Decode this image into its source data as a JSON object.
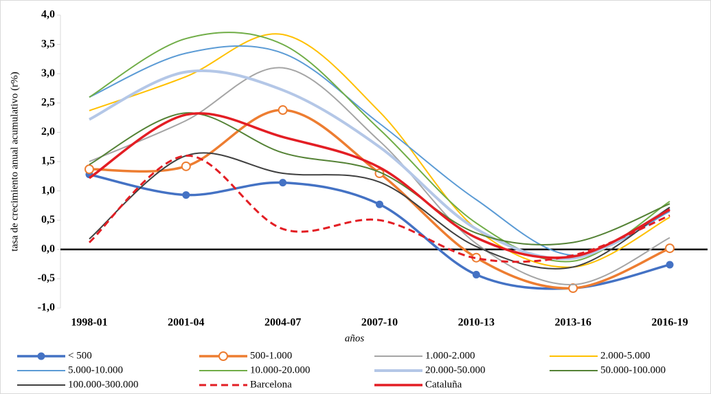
{
  "chart_data": {
    "type": "line",
    "y_label": "tasa de crecimiento anual acumulativo  (r%)",
    "x_label": "años",
    "categories": [
      "1998-01",
      "2001-04",
      "2004-07",
      "2007-10",
      "2010-13",
      "2013-16",
      "2016-19"
    ],
    "ylim": [
      -1,
      4
    ],
    "yticks": [
      {
        "value": -1,
        "label": "-1,0"
      },
      {
        "value": -0.5,
        "label": "-0,5"
      },
      {
        "value": 0,
        "label": "0,0"
      },
      {
        "value": 0.5,
        "label": "0,5"
      },
      {
        "value": 1,
        "label": "1,0"
      },
      {
        "value": 1.5,
        "label": "1,5"
      },
      {
        "value": 2,
        "label": "2,0"
      },
      {
        "value": 2.5,
        "label": "2,5"
      },
      {
        "value": 3,
        "label": "3,0"
      },
      {
        "value": 3.5,
        "label": "3,5"
      },
      {
        "value": 4,
        "label": "4,0"
      }
    ],
    "smooth": true,
    "legend": "bottom",
    "series": [
      {
        "name": "< 500",
        "color": "#4472c4",
        "width": 3.5,
        "marker": "filled",
        "values": [
          1.28,
          0.93,
          1.14,
          0.77,
          -0.43,
          -0.66,
          -0.26
        ]
      },
      {
        "name": "500-1.000",
        "color": "#ed7d31",
        "width": 3.5,
        "marker": "open",
        "values": [
          1.37,
          1.42,
          2.38,
          1.3,
          -0.14,
          -0.66,
          0.02
        ]
      },
      {
        "name": "1.000-2.000",
        "color": "#a5a5a5",
        "width": 2,
        "values": [
          1.5,
          2.2,
          3.1,
          1.85,
          0.1,
          -0.6,
          0.2
        ]
      },
      {
        "name": "2.000-5.000",
        "color": "#ffc000",
        "width": 2,
        "values": [
          2.37,
          2.95,
          3.67,
          2.35,
          0.35,
          -0.3,
          0.55
        ]
      },
      {
        "name": "5.000-10.000",
        "color": "#5b9bd5",
        "width": 2,
        "values": [
          2.6,
          3.35,
          3.35,
          2.15,
          0.85,
          -0.1,
          0.65
        ]
      },
      {
        "name": "10.000-20.000",
        "color": "#70ad47",
        "width": 2,
        "values": [
          2.6,
          3.6,
          3.5,
          2.05,
          0.45,
          -0.2,
          0.82
        ]
      },
      {
        "name": "20.000-50.000",
        "color": "#b4c7e7",
        "width": 4,
        "values": [
          2.22,
          3.03,
          2.72,
          1.75,
          0.35,
          -0.15,
          0.7
        ]
      },
      {
        "name": "50.000-100.000",
        "color": "#548235",
        "width": 2,
        "values": [
          1.45,
          2.33,
          1.65,
          1.32,
          0.28,
          0.12,
          0.78
        ]
      },
      {
        "name": "100.000-300.000",
        "color": "#404040",
        "width": 2,
        "values": [
          0.18,
          1.6,
          1.3,
          1.15,
          0.05,
          -0.3,
          0.72
        ]
      },
      {
        "name": "Barcelona",
        "color": "#e31e24",
        "width": 3,
        "dash": true,
        "values": [
          0.12,
          1.6,
          0.35,
          0.5,
          -0.15,
          -0.1,
          0.58
        ]
      },
      {
        "name": "Cataluña",
        "color": "#e31e24",
        "width": 3.5,
        "values": [
          1.22,
          2.3,
          1.92,
          1.4,
          0.2,
          -0.12,
          0.68
        ]
      }
    ]
  }
}
